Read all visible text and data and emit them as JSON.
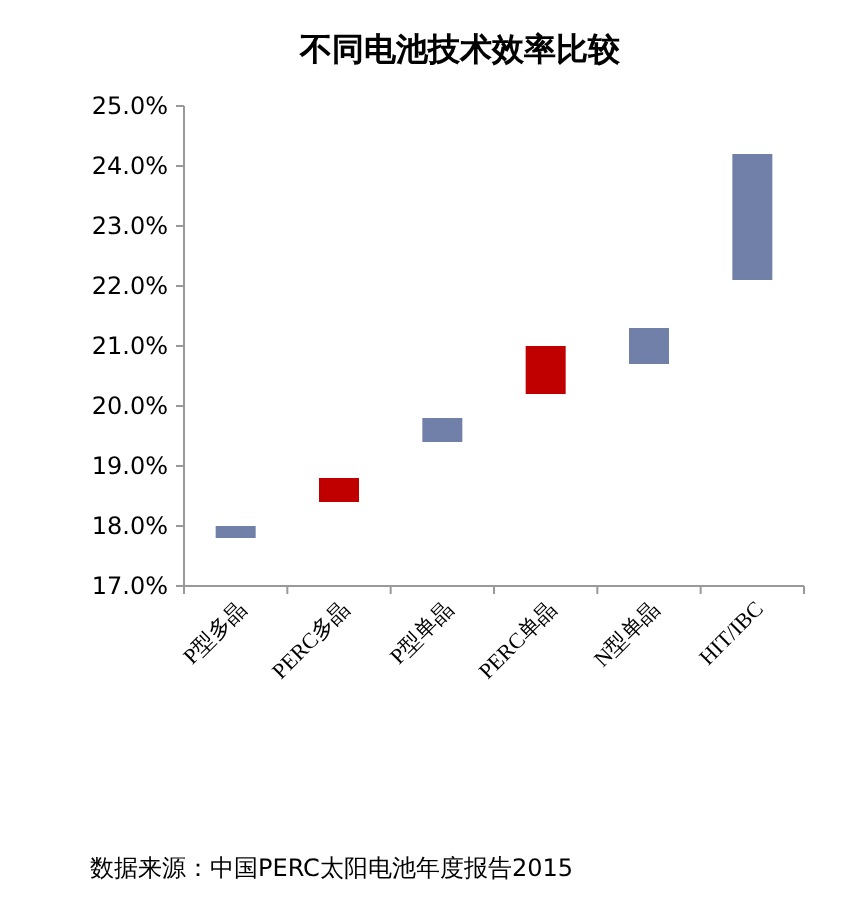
{
  "chart_data": {
    "type": "bar",
    "title": "不同电池技术效率比较",
    "categories": [
      "P型多晶",
      "PERC多晶",
      "P型单晶",
      "PERC单晶",
      "N型单晶",
      "HIT/IBC"
    ],
    "base": [
      17.8,
      18.4,
      19.4,
      20.2,
      20.7,
      22.1
    ],
    "values": [
      0.2,
      0.4,
      0.4,
      0.8,
      0.6,
      2.1
    ],
    "colors": [
      "#7080a8",
      "#c00000",
      "#7080a8",
      "#c00000",
      "#7080a8",
      "#7080a8"
    ],
    "ylim": [
      17,
      25
    ],
    "yticks": [
      {
        "value": 17,
        "label": "17.0%"
      },
      {
        "value": 18,
        "label": "18.0%"
      },
      {
        "value": 19,
        "label": "19.0%"
      },
      {
        "value": 20,
        "label": "20.0%"
      },
      {
        "value": 21,
        "label": "21.0%"
      },
      {
        "value": 22,
        "label": "22.0%"
      },
      {
        "value": 23,
        "label": "23.0%"
      },
      {
        "value": 24,
        "label": "24.0%"
      },
      {
        "value": 25,
        "label": "25.0%"
      }
    ],
    "annotations": [
      "数据来源：中国PERC太阳电池年度报告2015"
    ]
  }
}
